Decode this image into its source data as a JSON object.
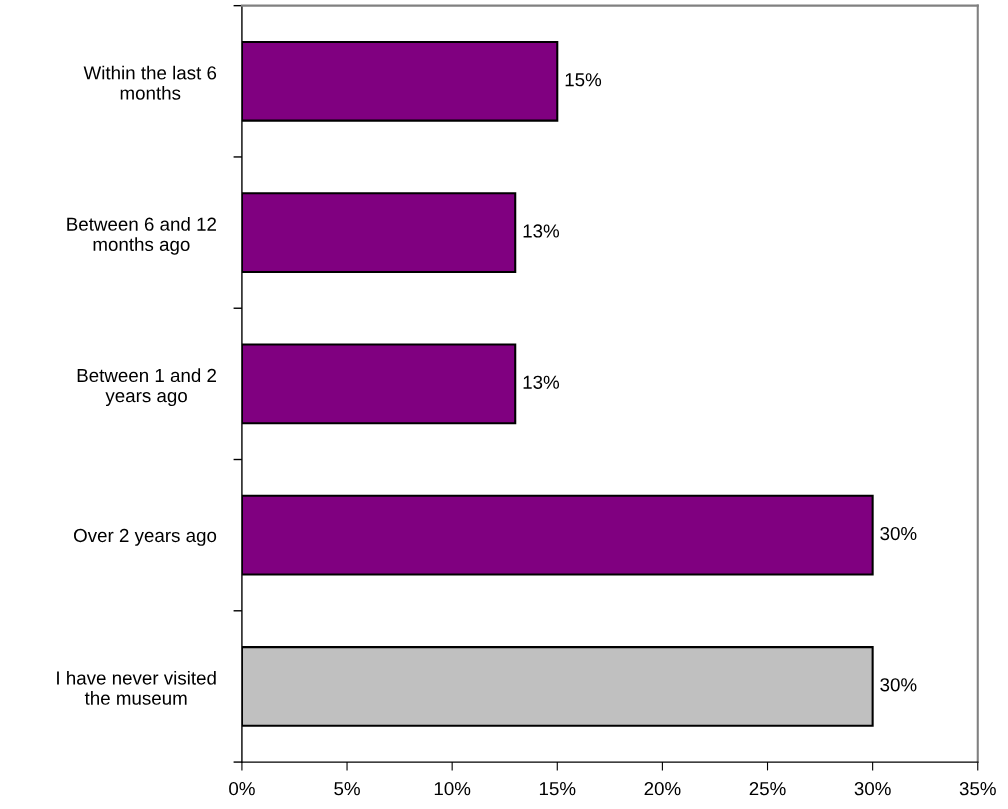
{
  "chart_data": {
    "type": "bar",
    "orientation": "horizontal",
    "categories": [
      "Within the last 6\nmonths",
      "Between 6 and 12\nmonths ago",
      "Between 1 and 2\nyears ago",
      "Over 2 years ago",
      "I have never visited\nthe museum"
    ],
    "values": [
      15,
      13,
      13,
      30,
      30
    ],
    "colors": [
      "#800080",
      "#800080",
      "#800080",
      "#800080",
      "#c0c0c0"
    ],
    "value_labels": [
      "15%",
      "13%",
      "13%",
      "30%",
      "30%"
    ],
    "xlim": [
      0,
      35
    ],
    "xticks": [
      {
        "value": 0,
        "label": "0%"
      },
      {
        "value": 5,
        "label": "5%"
      },
      {
        "value": 10,
        "label": "10%"
      },
      {
        "value": 15,
        "label": "15%"
      },
      {
        "value": 20,
        "label": "20%"
      },
      {
        "value": 25,
        "label": "25%"
      },
      {
        "value": 30,
        "label": "30%"
      },
      {
        "value": 35,
        "label": "35%"
      }
    ],
    "grid": false,
    "legend": false
  }
}
